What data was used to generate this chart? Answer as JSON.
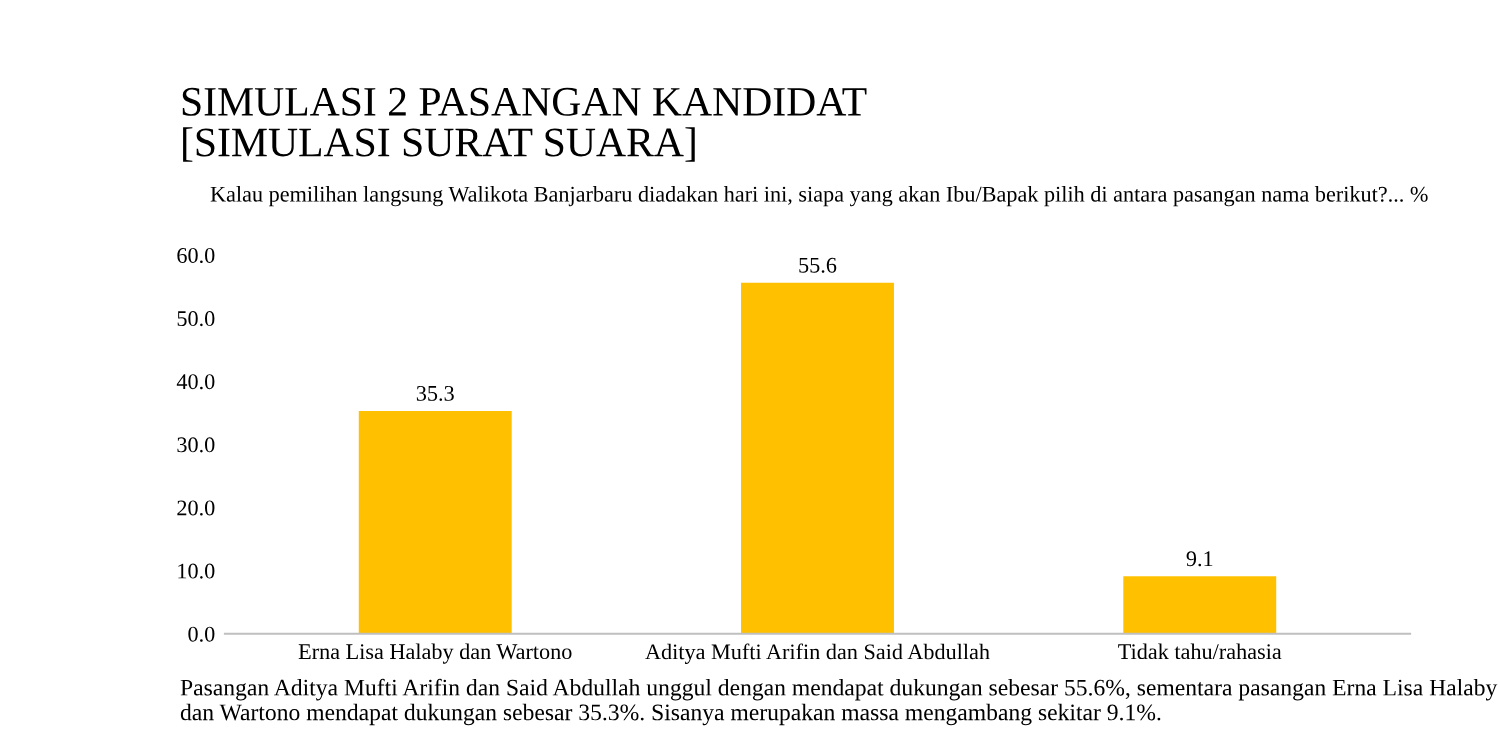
{
  "chart_data": {
    "type": "bar",
    "title": "SIMULASI 2 PASANGAN KANDIDAT\n[SIMULASI SURAT SUARA]",
    "subtitle": "Kalau pemilihan langsung Walikota Banjarbaru diadakan hari ini, siapa yang akan Ibu/Bapak pilih di antara pasangan nama berikut?... %",
    "categories": [
      "Erna Lisa Halaby dan Wartono",
      "Aditya Mufti Arifin dan Said Abdullah",
      "Tidak tahu/rahasia"
    ],
    "values": [
      35.3,
      55.6,
      9.1
    ],
    "color": "#ffc000",
    "data_labels": true,
    "ylim": [
      0,
      60
    ],
    "yticks": [
      {
        "value": 0,
        "label": "0.0"
      },
      {
        "value": 10,
        "label": "10.0"
      },
      {
        "value": 20,
        "label": "20.0"
      },
      {
        "value": 30,
        "label": "30.0"
      },
      {
        "value": 40,
        "label": "40.0"
      },
      {
        "value": 50,
        "label": "50.0"
      },
      {
        "value": 60,
        "label": "60.0"
      }
    ],
    "grid": false,
    "annotations": [
      "Pasangan Aditya Mufti Arifin dan Said Abdullah unggul dengan mendapat dukungan sebesar 55.6%, sementara pasangan Erna Lisa Halaby dan Wartono mendapat dukungan sebesar 35.3%. Sisanya merupakan massa mengambang sekitar 9.1%."
    ]
  }
}
